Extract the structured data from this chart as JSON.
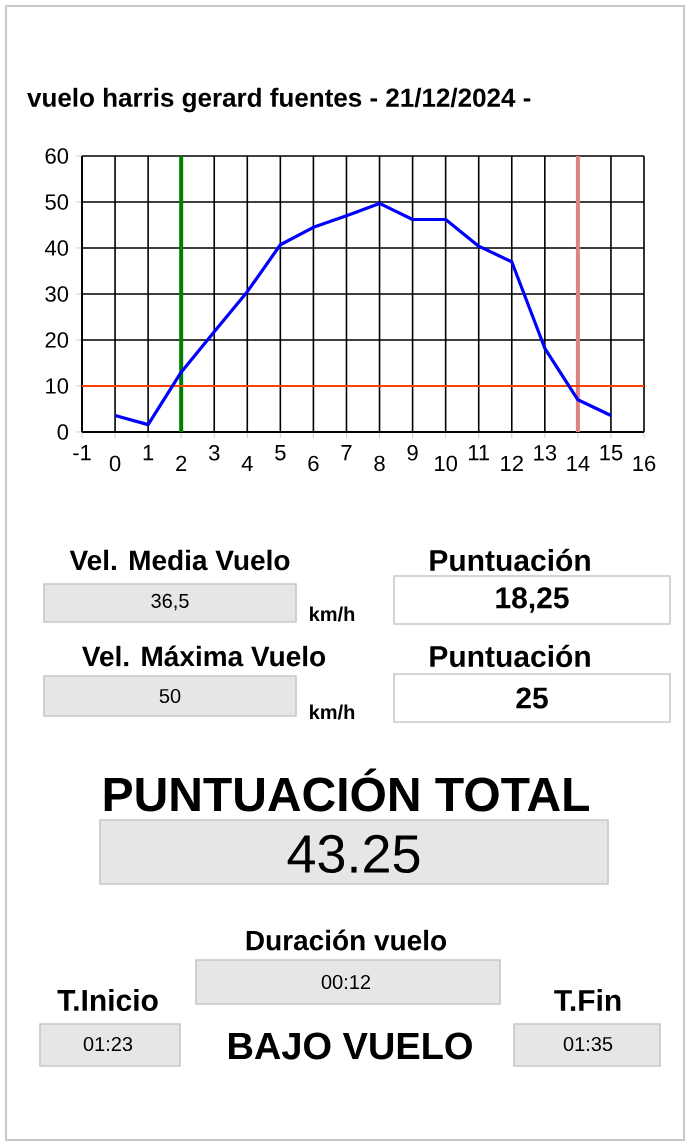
{
  "chart_data": [
    {
      "type": "line",
      "title": "vuelo harris gerard fuentes   -   21/12/2024   -",
      "x": [
        0,
        1,
        2,
        3,
        4,
        5,
        6,
        7,
        8,
        9,
        10,
        11,
        12,
        13,
        14,
        15
      ],
      "series": [
        {
          "color": "#0000ff",
          "values": [
            3.6,
            1.6,
            13,
            21.8,
            30.5,
            40.7,
            44.5,
            47,
            49.7,
            46.2,
            46.2,
            40.4,
            37,
            18.2,
            7,
            3.6
          ]
        }
      ],
      "xlim": [
        -1,
        16
      ],
      "ylim": [
        0,
        60
      ],
      "xticks": [
        -1,
        0,
        1,
        2,
        3,
        4,
        5,
        6,
        7,
        8,
        9,
        10,
        11,
        12,
        13,
        14,
        15,
        16
      ],
      "yticks": [
        0,
        10,
        20,
        30,
        40,
        50,
        60
      ],
      "grid": true,
      "ref_lines": [
        {
          "axis": "x",
          "value": 2,
          "color": "#008000"
        },
        {
          "axis": "x",
          "value": 14,
          "color": "#e08080"
        },
        {
          "axis": "y",
          "value": 10,
          "color": "#ff4000"
        }
      ]
    },
    {
      "type": "other",
      "annotations": [
        "Vel. Media Vuelo",
        "36,5",
        "km/h",
        "Puntuación",
        "18,25",
        "Vel. Máxima Vuelo",
        "50",
        "km/h",
        "Puntuación",
        "25",
        "PUNTUACIÓN TOTAL",
        "43.25",
        "Duración vuelo",
        "00:12",
        "T.Inicio",
        "01:23",
        "BAJO VUELO",
        "T.Fin",
        "01:35"
      ]
    }
  ]
}
